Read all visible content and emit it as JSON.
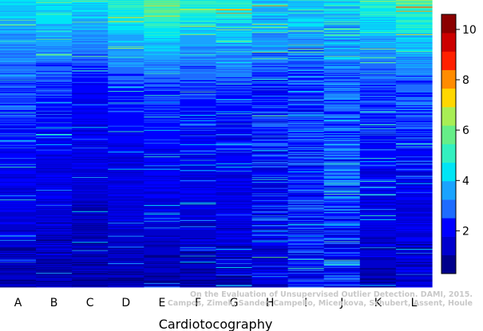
{
  "chart_data": {
    "type": "heatmap",
    "xlabel": "Cardiotocography",
    "columns": [
      "A",
      "B",
      "C",
      "D",
      "E",
      "F",
      "G",
      "H",
      "I",
      "J",
      "K",
      "L"
    ],
    "colorbar": {
      "min": 0.3,
      "max": 10.6,
      "ticks": [
        2,
        4,
        6,
        8,
        10
      ],
      "colors": [
        "#00008b",
        "#0000cd",
        "#0000ff",
        "#1e6cff",
        "#1aa3ff",
        "#00e5f5",
        "#33f0c0",
        "#66ee88",
        "#a8ee55",
        "#ffd700",
        "#ff8c00",
        "#ff2000",
        "#cc0000",
        "#8b0000"
      ]
    },
    "rows": 420,
    "column_profiles": [
      {
        "col": "A",
        "top_value": 4.2,
        "mid_value": 2.6,
        "bottom_value": 1.1,
        "noise": 0.55
      },
      {
        "col": "B",
        "top_value": 4.6,
        "mid_value": 2.4,
        "bottom_value": 1.1,
        "noise": 0.55
      },
      {
        "col": "C",
        "top_value": 4.4,
        "mid_value": 2.1,
        "bottom_value": 0.9,
        "noise": 0.45
      },
      {
        "col": "D",
        "top_value": 5.0,
        "mid_value": 2.4,
        "bottom_value": 1.0,
        "noise": 0.45
      },
      {
        "col": "E",
        "top_value": 5.6,
        "mid_value": 2.6,
        "bottom_value": 1.0,
        "noise": 0.45
      },
      {
        "col": "F",
        "top_value": 5.0,
        "mid_value": 2.4,
        "bottom_value": 1.1,
        "noise": 0.55
      },
      {
        "col": "G",
        "top_value": 5.0,
        "mid_value": 2.5,
        "bottom_value": 1.2,
        "noise": 0.6
      },
      {
        "col": "H",
        "top_value": 4.4,
        "mid_value": 2.4,
        "bottom_value": 1.6,
        "noise": 0.9
      },
      {
        "col": "I",
        "top_value": 4.2,
        "mid_value": 2.6,
        "bottom_value": 2.0,
        "noise": 0.95
      },
      {
        "col": "J",
        "top_value": 4.4,
        "mid_value": 3.0,
        "bottom_value": 2.2,
        "noise": 1.0
      },
      {
        "col": "K",
        "top_value": 4.8,
        "mid_value": 2.6,
        "bottom_value": 1.1,
        "noise": 0.6
      },
      {
        "col": "L",
        "top_value": 5.2,
        "mid_value": 2.8,
        "bottom_value": 1.3,
        "noise": 0.7
      }
    ]
  },
  "credit": {
    "line1": "On the Evaluation of Unsupervised Outlier Detection. DAMI, 2015.",
    "line2": "Campos, Zimek, Sander, Campello, Micenkova, Schubert, Assent, Houle"
  }
}
